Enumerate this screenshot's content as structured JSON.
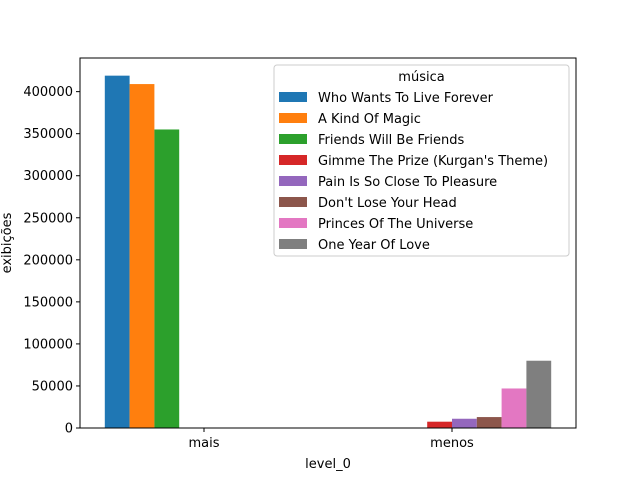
{
  "chart_data": {
    "type": "bar",
    "categories": [
      "mais",
      "menos"
    ],
    "xlabel": "level_0",
    "ylabel": "exibições",
    "ylim": [
      0,
      440000
    ],
    "yticks": [
      0,
      50000,
      100000,
      150000,
      200000,
      250000,
      300000,
      350000,
      400000
    ],
    "legend_title": "música",
    "legend_position": "upper right",
    "grid": false,
    "series": [
      {
        "name": "Who Wants To Live Forever",
        "color": "#1f77b4",
        "values": [
          419000,
          null
        ]
      },
      {
        "name": "A Kind Of Magic",
        "color": "#ff7f0e",
        "values": [
          409000,
          null
        ]
      },
      {
        "name": "Friends Will Be Friends",
        "color": "#2ca02c",
        "values": [
          355000,
          null
        ]
      },
      {
        "name": "Gimme The Prize (Kurgan's Theme)",
        "color": "#d62728",
        "values": [
          null,
          7500
        ]
      },
      {
        "name": "Pain Is So Close To Pleasure",
        "color": "#9467bd",
        "values": [
          null,
          11000
        ]
      },
      {
        "name": "Don't Lose Your Head",
        "color": "#8c564b",
        "values": [
          null,
          13000
        ]
      },
      {
        "name": "Princes Of The Universe",
        "color": "#e377c2",
        "values": [
          null,
          47000
        ]
      },
      {
        "name": "One Year Of Love",
        "color": "#7f7f7f",
        "values": [
          null,
          80000
        ]
      }
    ]
  }
}
